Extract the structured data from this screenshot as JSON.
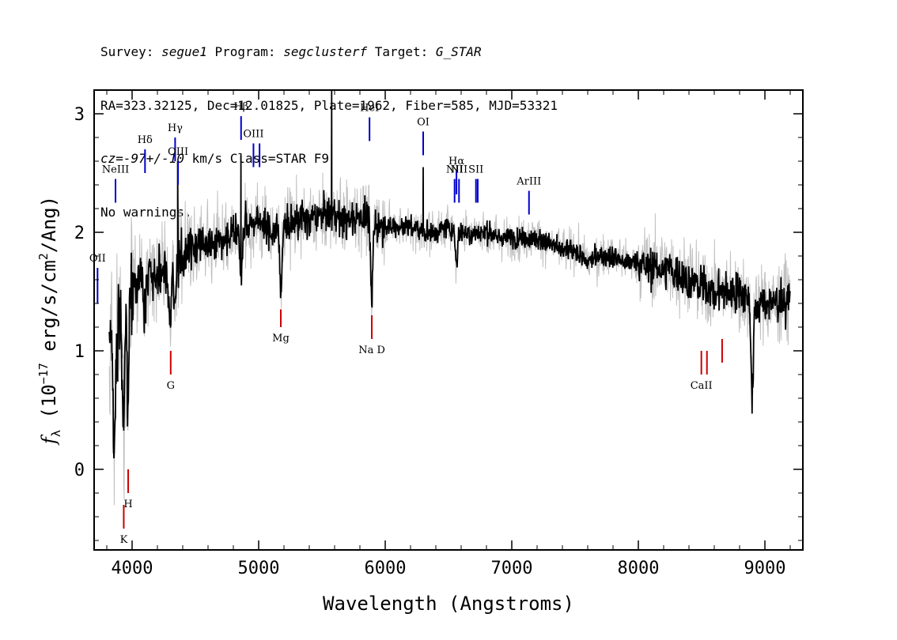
{
  "header": {
    "line1": {
      "survey_label": "Survey: ",
      "survey": "segue1",
      "program_label": " Program: ",
      "program": "segclusterf",
      "target_label": " Target: ",
      "target": "G_STAR"
    },
    "line2": "RA=323.32125, Dec=12.01825, Plate=1962, Fiber=585, MJD=53321",
    "line3": {
      "cz": "cz=-97+/-10",
      "rest": " km/s Class=STAR F9"
    },
    "line4": "No warnings."
  },
  "chart_data": {
    "type": "line",
    "xlabel": "Wavelength (Angstroms)",
    "ylabel_parts": {
      "f": "f",
      "sub": "λ",
      "a": " (10",
      "exp1": "−17",
      "b": " erg/s/cm",
      "exp2": "2",
      "c": "/Ang)"
    },
    "xlim": [
      3700,
      9300
    ],
    "ylim": [
      -0.68,
      3.2
    ],
    "xticks": [
      4000,
      5000,
      6000,
      7000,
      8000,
      9000
    ],
    "yticks": [
      0,
      1,
      2,
      3
    ],
    "colors": {
      "flux": "#000000",
      "error": "#c0c0c0",
      "emission": "#0000cc",
      "absorption": "#cc0000"
    },
    "series": [
      {
        "role": "flux",
        "continuum": [
          [
            3800,
            1.3
          ],
          [
            3850,
            1.0
          ],
          [
            3900,
            1.2
          ],
          [
            3950,
            1.4
          ],
          [
            4000,
            1.55
          ],
          [
            4100,
            1.65
          ],
          [
            4200,
            1.65
          ],
          [
            4300,
            1.65
          ],
          [
            4400,
            1.8
          ],
          [
            4500,
            1.9
          ],
          [
            4600,
            1.9
          ],
          [
            4700,
            1.95
          ],
          [
            4800,
            2.0
          ],
          [
            4900,
            2.05
          ],
          [
            5000,
            2.1
          ],
          [
            5100,
            2.0
          ],
          [
            5200,
            2.05
          ],
          [
            5300,
            2.1
          ],
          [
            5400,
            2.1
          ],
          [
            5500,
            2.15
          ],
          [
            5600,
            2.15
          ],
          [
            5700,
            2.1
          ],
          [
            5800,
            2.15
          ],
          [
            5900,
            2.1
          ],
          [
            6000,
            2.05
          ],
          [
            6100,
            2.05
          ],
          [
            6200,
            2.05
          ],
          [
            6300,
            2.0
          ],
          [
            6400,
            2.0
          ],
          [
            6500,
            2.05
          ],
          [
            6600,
            2.0
          ],
          [
            6700,
            2.0
          ],
          [
            6800,
            2.0
          ],
          [
            6900,
            1.95
          ],
          [
            7000,
            1.95
          ],
          [
            7100,
            1.95
          ],
          [
            7200,
            1.95
          ],
          [
            7300,
            1.9
          ],
          [
            7400,
            1.85
          ],
          [
            7500,
            1.85
          ],
          [
            7600,
            1.75
          ],
          [
            7700,
            1.8
          ],
          [
            7800,
            1.8
          ],
          [
            7900,
            1.75
          ],
          [
            8000,
            1.75
          ],
          [
            8100,
            1.7
          ],
          [
            8200,
            1.7
          ],
          [
            8300,
            1.65
          ],
          [
            8400,
            1.6
          ],
          [
            8500,
            1.55
          ],
          [
            8600,
            1.5
          ],
          [
            8700,
            1.5
          ],
          [
            8800,
            1.5
          ],
          [
            8900,
            1.4
          ],
          [
            9000,
            1.4
          ],
          [
            9100,
            1.4
          ],
          [
            9200,
            1.45
          ]
        ]
      },
      {
        "role": "error",
        "continuum": [
          [
            3800,
            1.3
          ],
          [
            3850,
            1.0
          ],
          [
            3900,
            1.2
          ],
          [
            3950,
            1.4
          ],
          [
            4000,
            1.55
          ],
          [
            4100,
            1.65
          ],
          [
            4200,
            1.65
          ],
          [
            4300,
            1.65
          ],
          [
            4400,
            1.8
          ],
          [
            4500,
            1.9
          ],
          [
            4600,
            1.9
          ],
          [
            4700,
            1.95
          ],
          [
            4800,
            2.0
          ],
          [
            4900,
            2.05
          ],
          [
            5000,
            2.1
          ],
          [
            5100,
            2.0
          ],
          [
            5200,
            2.05
          ],
          [
            5300,
            2.1
          ],
          [
            5400,
            2.1
          ],
          [
            5500,
            2.15
          ],
          [
            5600,
            2.15
          ],
          [
            5700,
            2.1
          ],
          [
            5800,
            2.15
          ],
          [
            5900,
            2.1
          ],
          [
            6000,
            2.05
          ],
          [
            6100,
            2.05
          ],
          [
            6200,
            2.05
          ],
          [
            6300,
            2.0
          ],
          [
            6400,
            2.0
          ],
          [
            6500,
            2.05
          ],
          [
            6600,
            2.0
          ],
          [
            6700,
            2.0
          ],
          [
            6800,
            2.0
          ],
          [
            6900,
            1.95
          ],
          [
            7000,
            1.95
          ],
          [
            7100,
            1.95
          ],
          [
            7200,
            1.95
          ],
          [
            7300,
            1.9
          ],
          [
            7400,
            1.85
          ],
          [
            7500,
            1.85
          ],
          [
            7600,
            1.75
          ],
          [
            7700,
            1.8
          ],
          [
            7800,
            1.8
          ],
          [
            7900,
            1.75
          ],
          [
            8000,
            1.75
          ],
          [
            8100,
            1.7
          ],
          [
            8200,
            1.7
          ],
          [
            8300,
            1.65
          ],
          [
            8400,
            1.6
          ],
          [
            8500,
            1.55
          ],
          [
            8600,
            1.5
          ],
          [
            8700,
            1.5
          ],
          [
            8800,
            1.5
          ],
          [
            8900,
            1.4
          ],
          [
            9000,
            1.4
          ],
          [
            9100,
            1.4
          ],
          [
            9200,
            1.45
          ]
        ]
      }
    ],
    "features": [
      {
        "x": 3860,
        "y": 1.1,
        "depth": 0.9
      },
      {
        "x": 3933,
        "y": 1.2,
        "depth": 1.1
      },
      {
        "x": 3968,
        "y": 1.3,
        "depth": 0.9
      },
      {
        "x": 4101,
        "y": 1.6,
        "depth": 0.4
      },
      {
        "x": 4300,
        "y": 1.6,
        "depth": 0.4
      },
      {
        "x": 4340,
        "y": 1.6,
        "depth": 0.3
      },
      {
        "x": 4861,
        "y": 2.0,
        "depth": 0.4
      },
      {
        "x": 5175,
        "y": 2.0,
        "depth": 0.5
      },
      {
        "x": 5893,
        "y": 2.1,
        "depth": 0.7
      },
      {
        "x": 6563,
        "y": 2.0,
        "depth": 0.3
      },
      {
        "x": 8900,
        "y": 1.4,
        "depth": 0.8
      }
    ],
    "spikes": [
      {
        "x": 5577,
        "y": 3.3
      },
      {
        "x": 4360,
        "y": 2.6
      },
      {
        "x": 4860,
        "y": 2.65
      },
      {
        "x": 6300,
        "y": 2.55
      }
    ],
    "emission_lines": [
      {
        "label": "OII",
        "x": 3727,
        "y_top": 1.7,
        "y_bot": 1.4
      },
      {
        "label": "NeIII",
        "x": 3869,
        "y_top": 2.45,
        "y_bot": 2.25
      },
      {
        "label": "Hδ",
        "x": 4102,
        "y_top": 2.7,
        "y_bot": 2.5
      },
      {
        "label": "Hγ",
        "x": 4340,
        "y_top": 2.8,
        "y_bot": 2.6
      },
      {
        "label": "OIII",
        "x": 4363,
        "y_top": 2.6,
        "y_bot": 2.4
      },
      {
        "label": "Hβ",
        "x": 4861,
        "y_top": 2.98,
        "y_bot": 2.78
      },
      {
        "label": "OIII",
        "x": 4959,
        "y_top": 2.75,
        "y_bot": 2.55
      },
      {
        "label": "",
        "x": 5007,
        "y_top": 2.75,
        "y_bot": 2.55
      },
      {
        "label": "HeI",
        "x": 5876,
        "y_top": 2.97,
        "y_bot": 2.77
      },
      {
        "label": "OI",
        "x": 6300,
        "y_top": 2.85,
        "y_bot": 2.65
      },
      {
        "label": "NII",
        "x": 6548,
        "y_top": 2.45,
        "y_bot": 2.25
      },
      {
        "label": "Hα",
        "x": 6563,
        "y_top": 2.52,
        "y_bot": 2.32
      },
      {
        "label": "NII",
        "x": 6583,
        "y_top": 2.45,
        "y_bot": 2.25
      },
      {
        "label": "SII",
        "x": 6717,
        "y_top": 2.45,
        "y_bot": 2.25
      },
      {
        "label": "",
        "x": 6731,
        "y_top": 2.45,
        "y_bot": 2.25
      },
      {
        "label": "ArIII",
        "x": 7136,
        "y_top": 2.35,
        "y_bot": 2.15
      }
    ],
    "absorption_lines": [
      {
        "label": "K",
        "x": 3934,
        "y_top": -0.3,
        "y_bot": -0.5
      },
      {
        "label": "H",
        "x": 3969,
        "y_top": -0.2,
        "y_bot": 0.0
      },
      {
        "label": "G",
        "x": 4305,
        "y_top": 0.8,
        "y_bot": 1.0
      },
      {
        "label": "Mg",
        "x": 5175,
        "y_top": 1.2,
        "y_bot": 1.35
      },
      {
        "label": "Na D",
        "x": 5894,
        "y_top": 1.1,
        "y_bot": 1.3
      },
      {
        "label": "CaII",
        "x": 8498,
        "y_top": 0.8,
        "y_bot": 1.0
      },
      {
        "label": "",
        "x": 8542,
        "y_top": 0.8,
        "y_bot": 1.0
      },
      {
        "label": "",
        "x": 8662,
        "y_top": 0.9,
        "y_bot": 1.1
      }
    ]
  }
}
